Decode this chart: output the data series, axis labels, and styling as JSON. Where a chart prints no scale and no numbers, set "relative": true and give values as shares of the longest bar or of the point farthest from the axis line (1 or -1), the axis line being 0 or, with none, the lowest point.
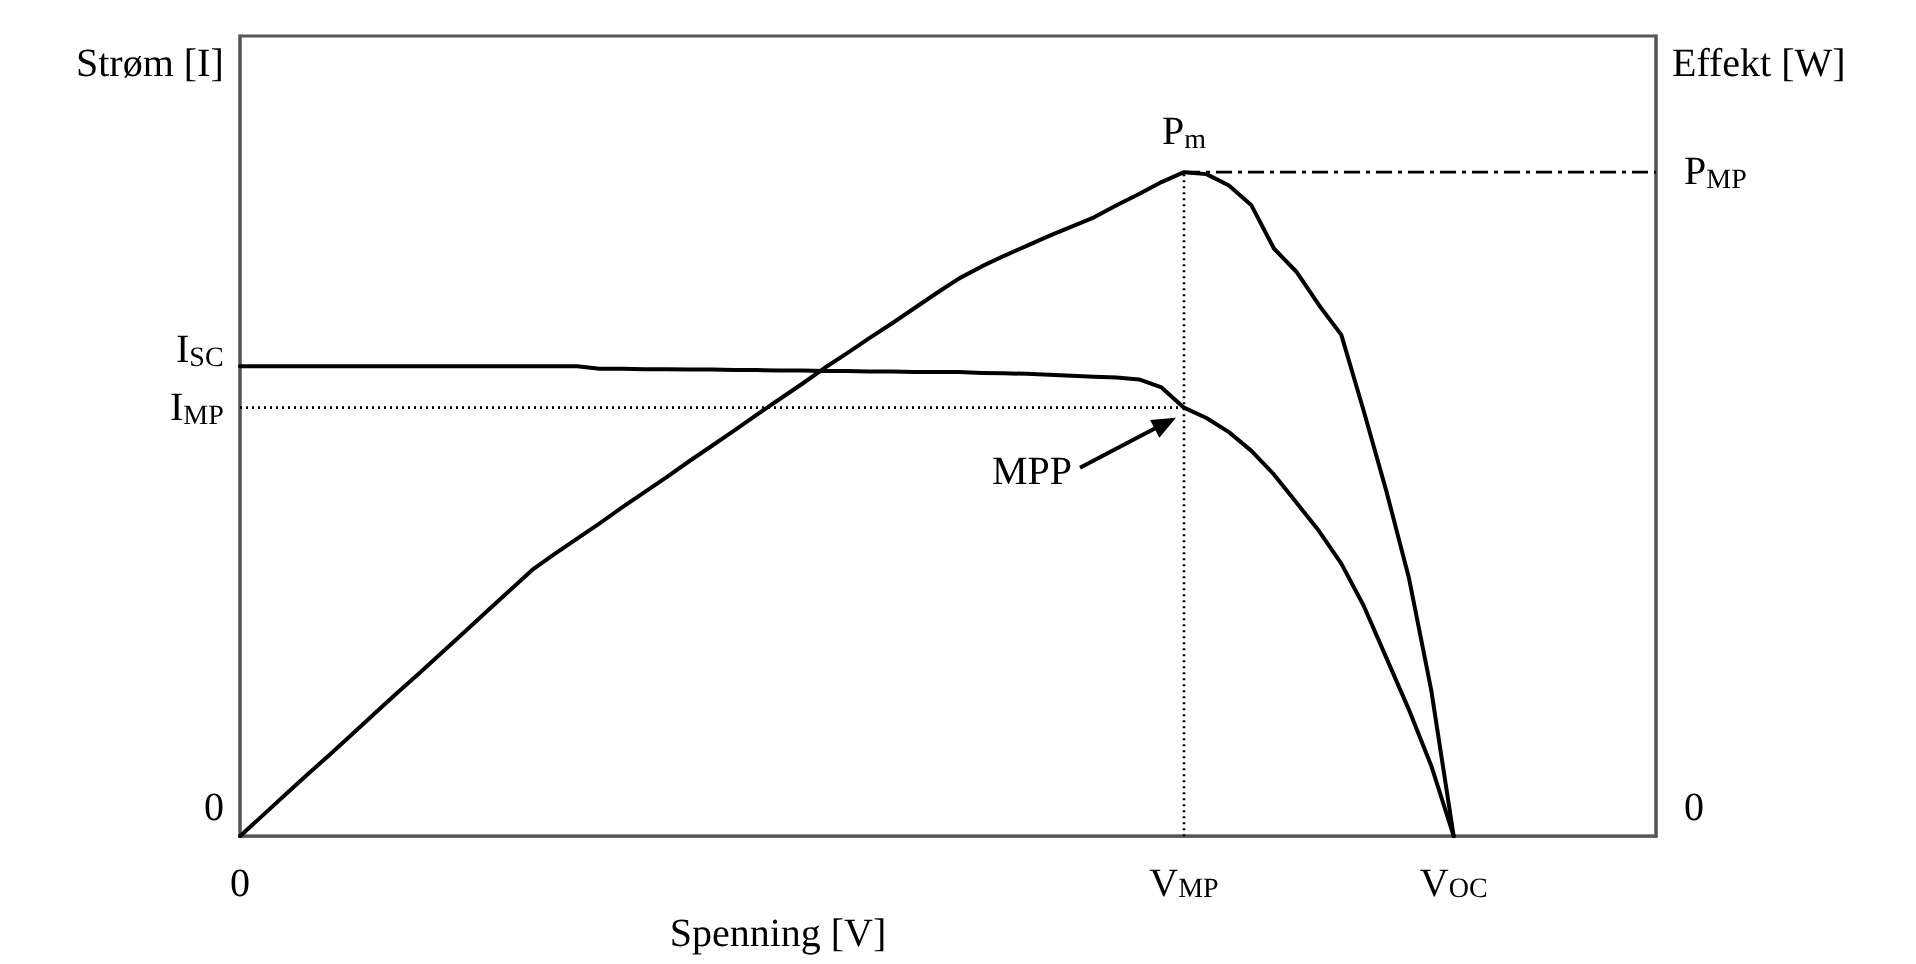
{
  "chart_data": {
    "type": "line",
    "relative": true,
    "xlabel": "Spenning [V]",
    "categories": [
      "0",
      null,
      null,
      null,
      null,
      null,
      null,
      null,
      null,
      null,
      null,
      null,
      null,
      null,
      null,
      null,
      null,
      null,
      null,
      null,
      null,
      null,
      null,
      null,
      null,
      null,
      null,
      null,
      null,
      null,
      null,
      null,
      null,
      null,
      null,
      null,
      null,
      null,
      null,
      null,
      null,
      null,
      "V$_{MP}$",
      null,
      null,
      null,
      null,
      null,
      null,
      null,
      null,
      null,
      null,
      null,
      "V$_{OC}$",
      null,
      null,
      null,
      null,
      null,
      null,
      null,
      null,
      null
    ],
    "series": [
      {
        "color": "#000000",
        "values": [
          1,
          1,
          1,
          1,
          1,
          1,
          1,
          1,
          1,
          1,
          1,
          1,
          1,
          1,
          1,
          1,
          0.995,
          0.995,
          0.994,
          0.994,
          0.993,
          0.993,
          0.992,
          0.992,
          0.991,
          0.991,
          0.99,
          0.99,
          0.989,
          0.989,
          0.988,
          0.988,
          0.988,
          0.986,
          0.985,
          0.984,
          0.982,
          0.98,
          0.978,
          0.976,
          0.972,
          0.955,
          0.912,
          0.89,
          0.86,
          0.82,
          0.77,
          0.71,
          0.65,
          0.58,
          0.49,
          0.38,
          0.27,
          0.15,
          0,
          null,
          null,
          null,
          null,
          null,
          null,
          null,
          null,
          null
        ]
      },
      {
        "color": "#000000",
        "axis": "y2",
        "values": [
          0,
          0.031,
          0.062,
          0.093,
          0.123,
          0.154,
          0.185,
          0.216,
          0.246,
          0.277,
          0.308,
          0.339,
          0.37,
          0.401,
          0.425,
          0.448,
          0.471,
          0.495,
          0.518,
          0.541,
          0.565,
          0.588,
          0.611,
          0.635,
          0.658,
          0.681,
          0.705,
          0.727,
          0.75,
          0.772,
          0.795,
          0.818,
          0.84,
          0.858,
          0.874,
          0.889,
          0.904,
          0.918,
          0.932,
          0.95,
          0.967,
          0.985,
          1,
          0.997,
          0.98,
          0.95,
          0.885,
          0.85,
          0.8,
          0.755,
          0.64,
          0.52,
          0.39,
          0.22,
          0,
          null,
          null,
          null,
          null,
          null,
          null,
          null,
          null,
          null
        ]
      }
    ],
    "ref_lines": [
      {
        "axis": "y",
        "value": 0.912,
        "label": "I$_{MP}$",
        "line_style": "dotted",
        "color": "#000000"
      },
      {
        "axis": "x",
        "value": "V$_{MP}$",
        "line_style": "dotted",
        "color": "#000000"
      },
      {
        "axis": "y2",
        "value": 1,
        "label": "P$_{MP}$",
        "line_style": "dashed",
        "color": "#000000"
      }
    ],
    "annotations": [
      "Strøm [I]",
      "Effekt [W]",
      "0",
      {
        "text": "I$_{SC}$",
        "x": "0",
        "y": 1
      },
      {
        "text": "0",
        "x": "0",
        "y": 0
      },
      {
        "text": "P$_{m}$",
        "x": "V$_{MP}$",
        "y": 1.414
      },
      {
        "text": "MPP",
        "x": "V$_{MP}$",
        "y": 0.912
      }
    ],
    "grid": false,
    "marker": "none",
    "line_style": "solid"
  }
}
